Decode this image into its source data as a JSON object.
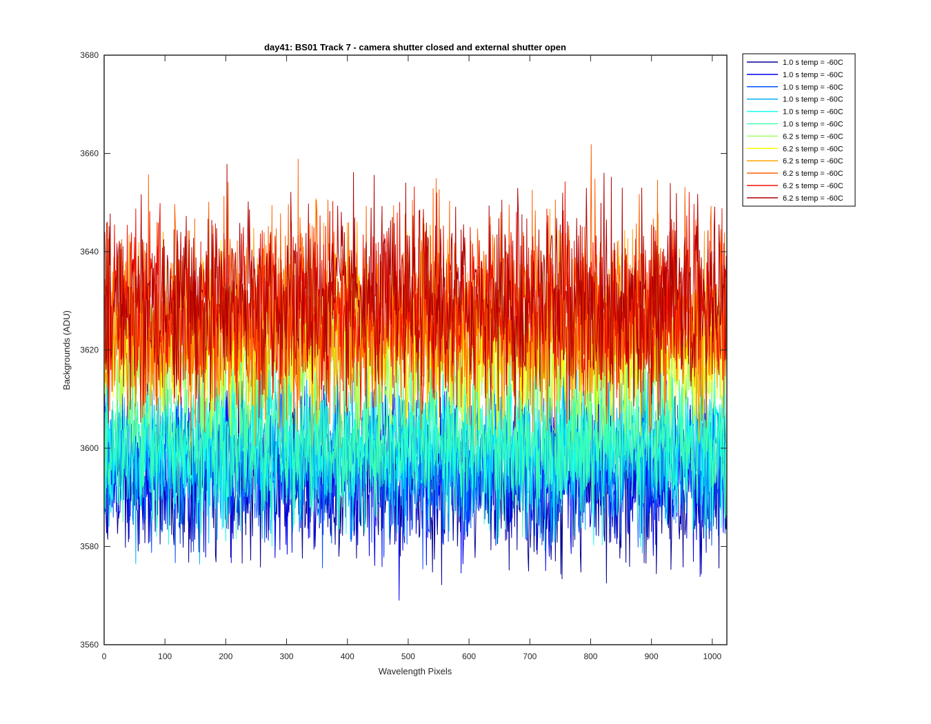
{
  "chart_data": {
    "type": "line",
    "title": "day41: BS01  Track 7 - camera shutter closed and external shutter open",
    "xlabel": "Wavelength Pixels",
    "ylabel": "Backgrounds (ADU)",
    "xlim": [
      0,
      1024
    ],
    "ylim": [
      3560,
      3680
    ],
    "xticks": [
      0,
      100,
      200,
      300,
      400,
      500,
      600,
      700,
      800,
      900,
      1000
    ],
    "yticks": [
      3560,
      3580,
      3600,
      3620,
      3640,
      3660,
      3680
    ],
    "grid": false,
    "legend_position": "outside-top-right",
    "n_points_per_series": 1024,
    "series": [
      {
        "name": "1.0 s temp = -60C",
        "color": "#00008F",
        "mean": 3593,
        "noise_range": [
          3566,
          3612
        ]
      },
      {
        "name": "1.0 s temp = -60C",
        "color": "#0000EF",
        "mean": 3595,
        "noise_range": [
          3567,
          3614
        ]
      },
      {
        "name": "1.0 s temp = -60C",
        "color": "#0050FF",
        "mean": 3597,
        "noise_range": [
          3570,
          3616
        ]
      },
      {
        "name": "1.0 s temp = -60C",
        "color": "#00AFFF",
        "mean": 3599,
        "noise_range": [
          3573,
          3617
        ]
      },
      {
        "name": "1.0 s temp = -60C",
        "color": "#10FFEF",
        "mean": 3600,
        "noise_range": [
          3575,
          3618
        ]
      },
      {
        "name": "1.0 s temp = -60C",
        "color": "#40FFAF",
        "mean": 3602,
        "noise_range": [
          3572,
          3620
        ]
      },
      {
        "name": "6.2 s temp = -60C",
        "color": "#9FFF60",
        "mean": 3617,
        "noise_range": [
          3600,
          3640
        ]
      },
      {
        "name": "6.2 s temp = -60C",
        "color": "#FFFF00",
        "mean": 3621,
        "noise_range": [
          3602,
          3645
        ]
      },
      {
        "name": "6.2 s temp = -60C",
        "color": "#FFA000",
        "mean": 3625,
        "noise_range": [
          3600,
          3651
        ]
      },
      {
        "name": "6.2 s temp = -60C",
        "color": "#FF6000",
        "mean": 3627,
        "noise_range": [
          3603,
          3663
        ]
      },
      {
        "name": "6.2 s temp = -60C",
        "color": "#EF1000",
        "mean": 3628,
        "noise_range": [
          3602,
          3656
        ]
      },
      {
        "name": "6.2 s temp = -60C",
        "color": "#AF0000",
        "mean": 3630,
        "noise_range": [
          3604,
          3659
        ]
      }
    ]
  }
}
